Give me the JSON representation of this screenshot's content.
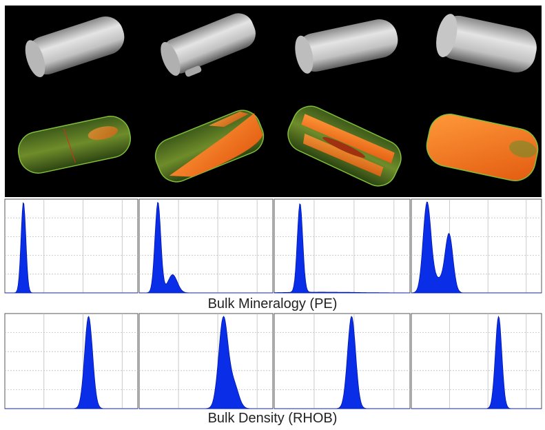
{
  "captions": {
    "pe": "Bulk Mineralogy (PE)",
    "rhob": "Bulk Density (RHOB)"
  },
  "colors": {
    "scan_background": "#000000",
    "ct_grey": "#c8c8c8",
    "mineral_orange": "#ff7a1a",
    "core_green": "#6f8c2a",
    "histogram_fill": "#0a2ee8",
    "grid": "#bdbdbd"
  },
  "samples": [
    {
      "id": 1,
      "grey_icon": "cylinder-ct-grey",
      "color_icon": "cylinder-ct-green",
      "orange_fraction": 0.1
    },
    {
      "id": 2,
      "grey_icon": "cylinder-ct-grey",
      "color_icon": "cylinder-ct-green",
      "orange_fraction": 0.45
    },
    {
      "id": 3,
      "grey_icon": "cylinder-ct-grey",
      "color_icon": "cylinder-ct-green",
      "orange_fraction": 0.6
    },
    {
      "id": 4,
      "grey_icon": "cylinder-ct-grey",
      "color_icon": "cylinder-ct-green",
      "orange_fraction": 0.85
    }
  ],
  "chart_data": [
    {
      "type": "area",
      "title": "Bulk Mineralogy (PE)",
      "panels": [
        {
          "peaks": [
            {
              "mu": 0.14,
              "sigma": 0.018,
              "amp": 1.0
            }
          ]
        },
        {
          "peaks": [
            {
              "mu": 0.14,
              "sigma": 0.022,
              "amp": 1.0
            },
            {
              "mu": 0.25,
              "sigma": 0.035,
              "amp": 0.2
            }
          ]
        },
        {
          "peaks": [
            {
              "mu": 0.19,
              "sigma": 0.02,
              "amp": 0.98
            },
            {
              "mu": 0.35,
              "sigma": 0.25,
              "amp": 0.008
            }
          ]
        },
        {
          "peaks": [
            {
              "mu": 0.12,
              "sigma": 0.03,
              "amp": 1.0
            },
            {
              "mu": 0.29,
              "sigma": 0.03,
              "amp": 0.65
            },
            {
              "mu": 0.2,
              "sigma": 0.05,
              "amp": 0.15
            }
          ]
        }
      ]
    },
    {
      "type": "area",
      "title": "Bulk Density (RHOB)",
      "panels": [
        {
          "peaks": [
            {
              "mu": 0.63,
              "sigma": 0.03,
              "amp": 1.0
            }
          ]
        },
        {
          "peaks": [
            {
              "mu": 0.63,
              "sigma": 0.035,
              "amp": 1.0
            },
            {
              "mu": 0.71,
              "sigma": 0.035,
              "amp": 0.25
            }
          ]
        },
        {
          "peaks": [
            {
              "mu": 0.57,
              "sigma": 0.03,
              "amp": 1.0
            }
          ]
        },
        {
          "peaks": [
            {
              "mu": 0.67,
              "sigma": 0.025,
              "amp": 1.0
            }
          ]
        }
      ]
    }
  ]
}
